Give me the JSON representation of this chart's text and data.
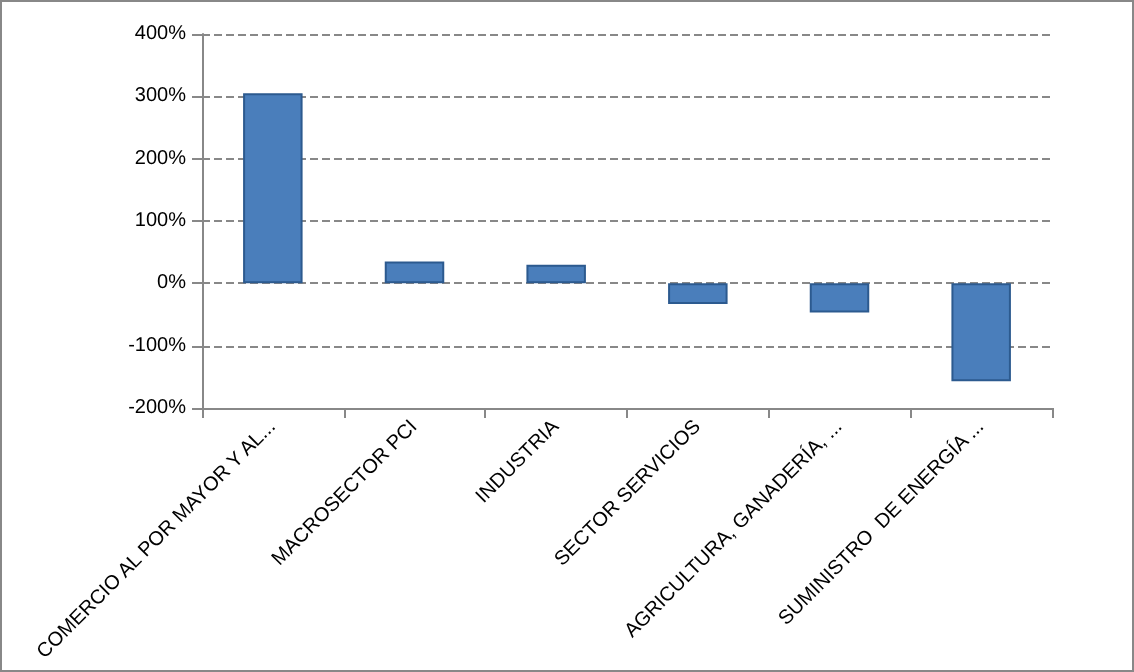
{
  "chart_data": {
    "type": "bar",
    "categories": [
      "COMERCIO AL POR MAYOR Y AL...",
      "MACROSECTOR PCI",
      "INDUSTRIA",
      "SECTOR SERVICIOS",
      "AGRICULTURA, GANADERÍA, ...",
      "SUMINISTRO  DE ENERGÍA ..."
    ],
    "values": [
      305,
      35,
      30,
      -33,
      -47,
      -157
    ],
    "color": "#4a7ebb",
    "ylim": [
      -200,
      400
    ],
    "yticks": [
      {
        "value": -200,
        "label": "-200%"
      },
      {
        "value": -100,
        "label": "-100%"
      },
      {
        "value": 0,
        "label": "0%"
      },
      {
        "value": 100,
        "label": "100%"
      },
      {
        "value": 200,
        "label": "200%"
      },
      {
        "value": 300,
        "label": "300%"
      },
      {
        "value": 400,
        "label": "400%"
      }
    ],
    "grid": "y"
  }
}
